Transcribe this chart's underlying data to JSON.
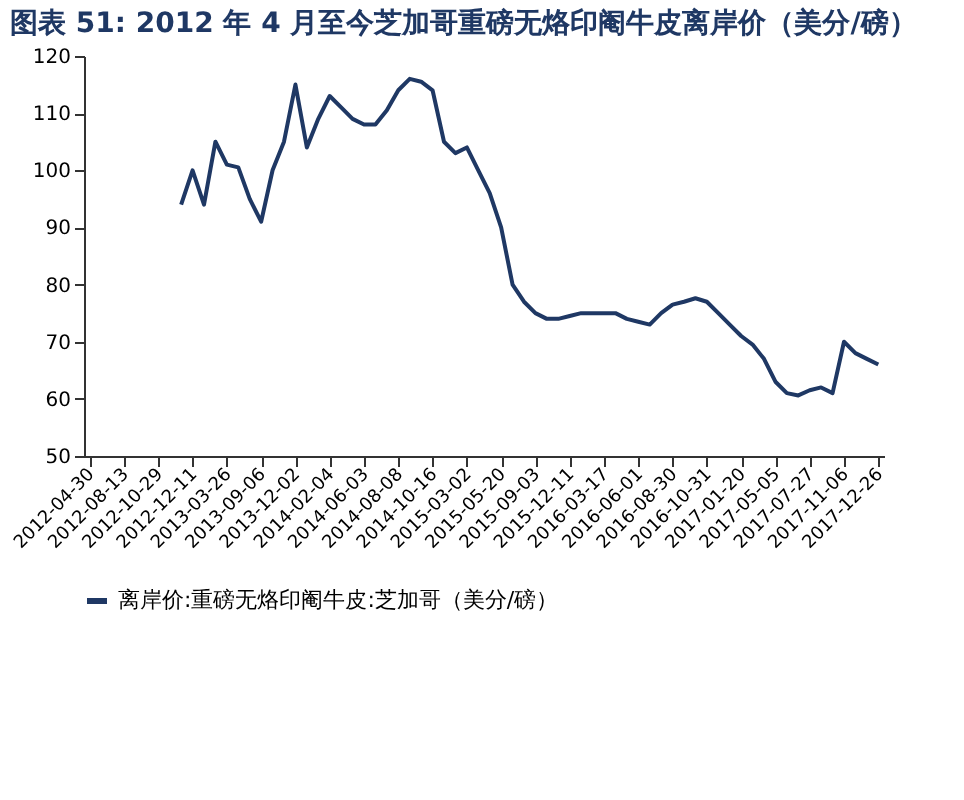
{
  "chart_data": {
    "type": "line",
    "title": "图表 51: 2012 年 4 月至今芝加哥重磅无烙印阉牛皮离岸价（美分/磅）",
    "categories": [
      "2012-04-30",
      null,
      null,
      "2012-08-13",
      null,
      null,
      "2012-10-29",
      null,
      null,
      "2012-12-11",
      null,
      null,
      "2013-03-26",
      null,
      null,
      "2013-09-06",
      null,
      null,
      "2013-12-02",
      null,
      null,
      "2014-02-04",
      null,
      null,
      "2014-06-03",
      null,
      null,
      "2014-08-08",
      null,
      null,
      "2014-10-16",
      null,
      null,
      "2015-03-02",
      null,
      null,
      "2015-05-20",
      null,
      null,
      "2015-09-03",
      null,
      null,
      "2015-12-11",
      null,
      null,
      "2016-03-17",
      null,
      null,
      "2016-06-01",
      null,
      null,
      "2016-08-30",
      null,
      null,
      "2016-10-31",
      null,
      null,
      "2017-01-20",
      null,
      null,
      "2017-05-05",
      null,
      null,
      "2017-07-27",
      null,
      null,
      "2017-11-06",
      null,
      null,
      "2017-12-26"
    ],
    "series": [
      {
        "name": "离岸价:重磅无烙印阉牛皮:芝加哥（美分/磅）",
        "color": "#1f3864",
        "values": [
          null,
          null,
          null,
          null,
          null,
          null,
          null,
          null,
          94,
          100,
          94,
          105,
          101,
          100.5,
          95,
          91,
          100,
          105,
          115,
          104,
          109,
          113,
          111,
          109,
          108,
          108,
          110.5,
          114,
          116,
          115.5,
          114,
          105,
          103,
          104,
          100,
          96,
          90,
          80,
          77,
          75,
          74,
          74,
          74.5,
          75,
          75,
          75,
          75,
          74,
          73.5,
          73,
          75,
          76.5,
          77,
          77.6,
          77,
          75,
          73,
          71,
          69.5,
          67,
          63,
          61,
          60.6,
          61.5,
          62,
          61,
          70,
          68,
          67,
          66
        ]
      }
    ],
    "ylim": [
      50,
      120
    ],
    "yticks": [
      50,
      60,
      70,
      80,
      90,
      100,
      110,
      120
    ],
    "grid": false,
    "legend": "bottom",
    "line_style": "solid",
    "marker": "none"
  }
}
